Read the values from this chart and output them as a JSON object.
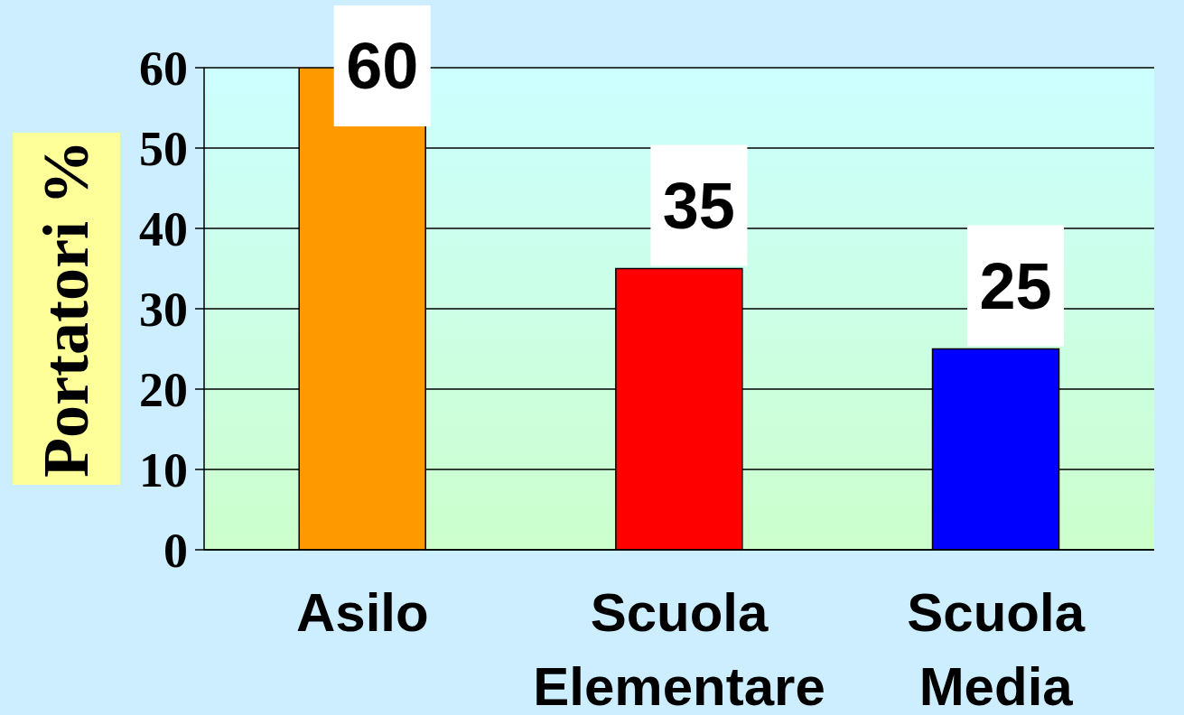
{
  "chart_data": {
    "type": "bar",
    "ylabel": "Portatori %",
    "categories": [
      "Asilo",
      "Scuola Elementare",
      "Scuola Media"
    ],
    "values": [
      60,
      35,
      25
    ],
    "colors": [
      "#ff9900",
      "#ff0000",
      "#0000ff"
    ],
    "ylim": [
      0,
      60
    ],
    "yticks": [
      0,
      10,
      20,
      30,
      40,
      50,
      60
    ],
    "grid": "y",
    "data_labels": true
  }
}
